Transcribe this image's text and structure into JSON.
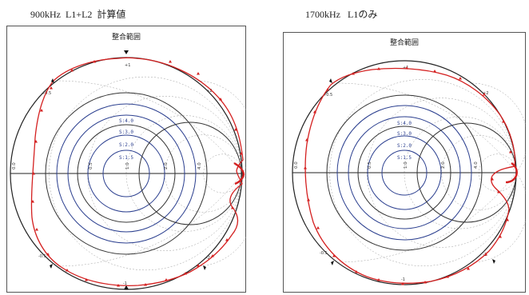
{
  "captions": {
    "left": "900kHz  L1+L2  計算値",
    "right": "1700kHz   L1のみ"
  },
  "panels": [
    {
      "id": "left",
      "title": "整合範囲",
      "swr_labels": [
        "S:4.0",
        "S:3.0",
        "S:2.0",
        "S:1.5"
      ],
      "resistance_labels": [
        "0.0",
        "0.5",
        "1.0",
        "2.0",
        "4.0"
      ],
      "reactance_labels": [
        "+0.5",
        "+1",
        "+2",
        "-0.5",
        "-1",
        "-2"
      ]
    },
    {
      "id": "right",
      "title": "整合範囲",
      "swr_labels": [
        "S:4.0",
        "S:3.0",
        "S:2.0",
        "S:1.5"
      ],
      "resistance_labels": [
        "0.0",
        "0.5",
        "1.0",
        "2.0",
        "4.0"
      ],
      "reactance_labels": [
        "+0.5",
        "+1",
        "+2",
        "-0.5",
        "-1",
        "-2"
      ]
    }
  ],
  "colors": {
    "frame": "#555555",
    "outer_circle": "#222222",
    "grid": "#9a9a9a",
    "swr_circle": "#2b3f8f",
    "matching_curve": "#d42020",
    "marker": "#111111"
  }
}
